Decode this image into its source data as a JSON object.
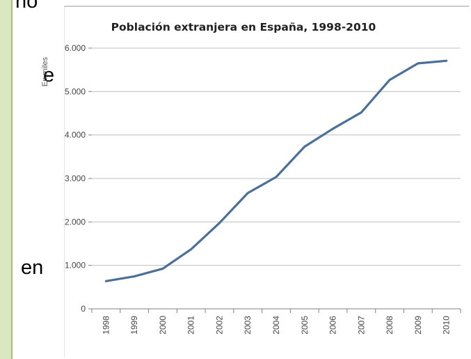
{
  "background_text": {
    "fragment_1": "no",
    "fragment_2": "e",
    "fragment_3": "en"
  },
  "chart_data": {
    "type": "line",
    "title": "Población extranjera en España, 1998-2010",
    "xlabel": "",
    "ylabel": "En miles",
    "x": [
      "1998",
      "1999",
      "2000",
      "2001",
      "2002",
      "2003",
      "2004",
      "2005",
      "2006",
      "2007",
      "2008",
      "2009",
      "2010"
    ],
    "series": [
      {
        "values": [
          637,
          748,
          924,
          1370,
          1977,
          2664,
          3034,
          3731,
          4144,
          4519,
          5268,
          5648,
          5708
        ]
      }
    ],
    "ylim": [
      0,
      6000
    ],
    "yticks": [
      0,
      1000,
      2000,
      3000,
      4000,
      5000,
      6000
    ],
    "ytick_labels": [
      "0",
      "1.000",
      "2.000",
      "3.000",
      "4.000",
      "5.000",
      "6.000"
    ],
    "grid": true,
    "line_color": "#4a6f99",
    "grid_color": "#bfbfbf"
  }
}
